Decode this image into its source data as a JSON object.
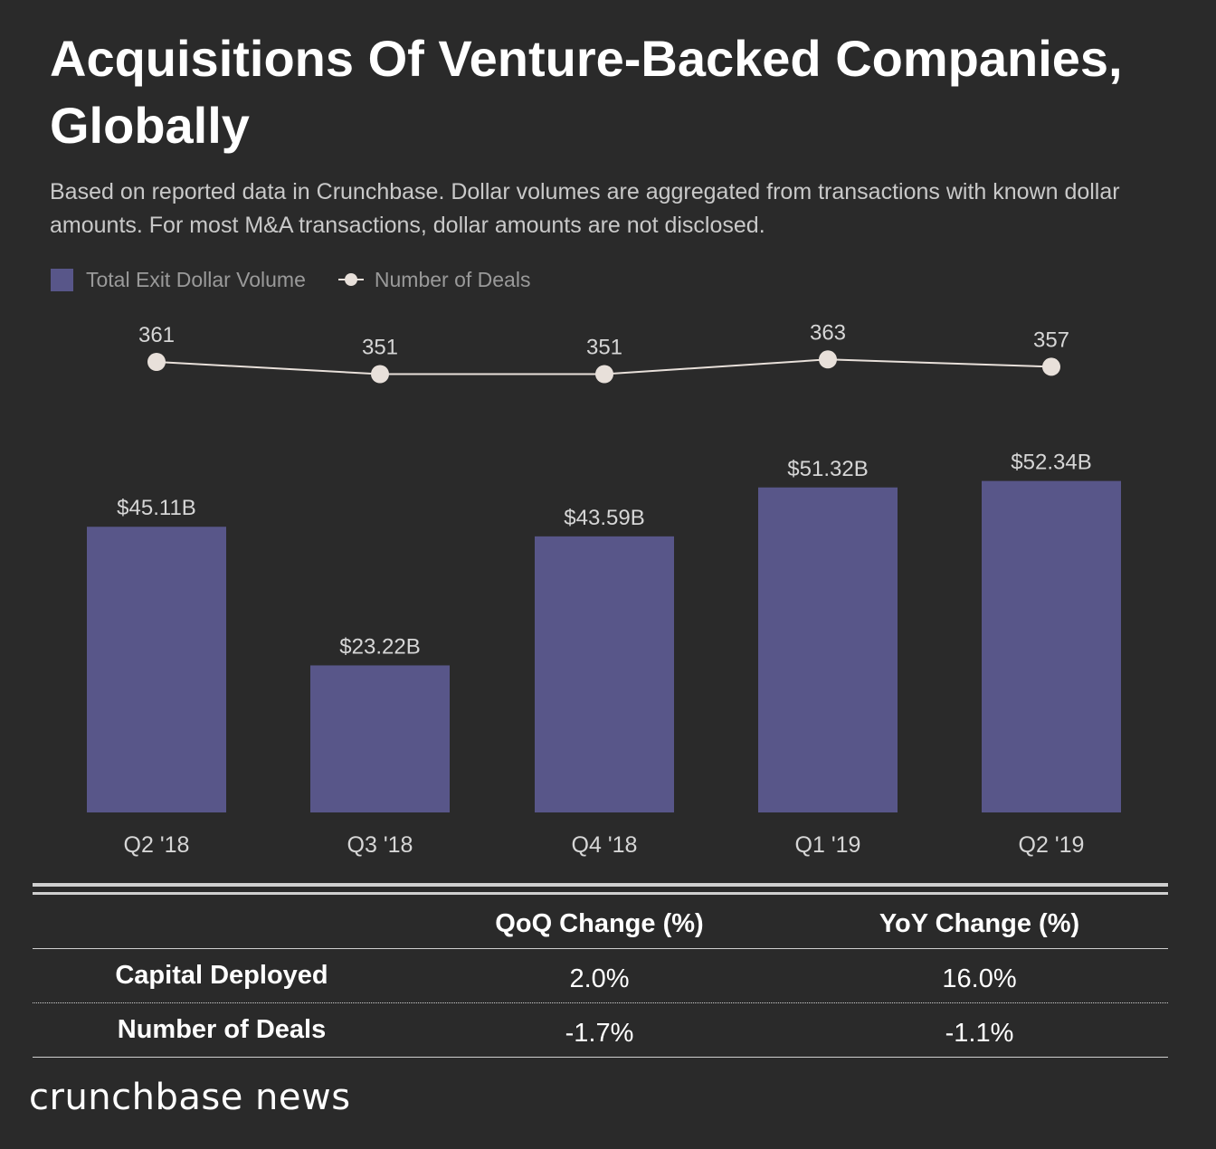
{
  "title": "Acquisitions Of Venture-Backed Companies, Globally",
  "subtitle": "Based on reported data in Crunchbase. Dollar volumes are aggregated from transactions with known dollar amounts. For most M&A transactions, dollar amounts are not disclosed.",
  "colors": {
    "background": "#2a2a2a",
    "bar": "#585689",
    "line": "#e8e0da",
    "text": "#ffffff",
    "muted_text": "#c9c9c9"
  },
  "chart_data": {
    "type": "bar",
    "title": "Acquisitions Of Venture-Backed Companies, Globally",
    "categories": [
      "Q2 '18",
      "Q3 '18",
      "Q4 '18",
      "Q1 '19",
      "Q2 '19"
    ],
    "legend_position": "top-left",
    "grid": false,
    "series": [
      {
        "name": "Total Exit Dollar Volume",
        "type": "bar",
        "values": [
          45.11,
          23.22,
          43.59,
          51.32,
          52.34
        ],
        "labels": [
          "$45.11B",
          "$23.22B",
          "$43.59B",
          "$51.32B",
          "$52.34B"
        ],
        "unit": "$B"
      },
      {
        "name": "Number of Deals",
        "type": "line",
        "values": [
          361,
          351,
          351,
          363,
          357
        ],
        "labels": [
          "361",
          "351",
          "351",
          "363",
          "357"
        ]
      }
    ]
  },
  "table": {
    "headers": [
      "",
      "QoQ Change (%)",
      "YoY Change (%)"
    ],
    "rows": [
      {
        "label": "Capital Deployed",
        "qoq": "2.0%",
        "yoy": "16.0%"
      },
      {
        "label": "Number of Deals",
        "qoq": "-1.7%",
        "yoy": "-1.1%"
      }
    ]
  },
  "brand": "crunchbase news"
}
